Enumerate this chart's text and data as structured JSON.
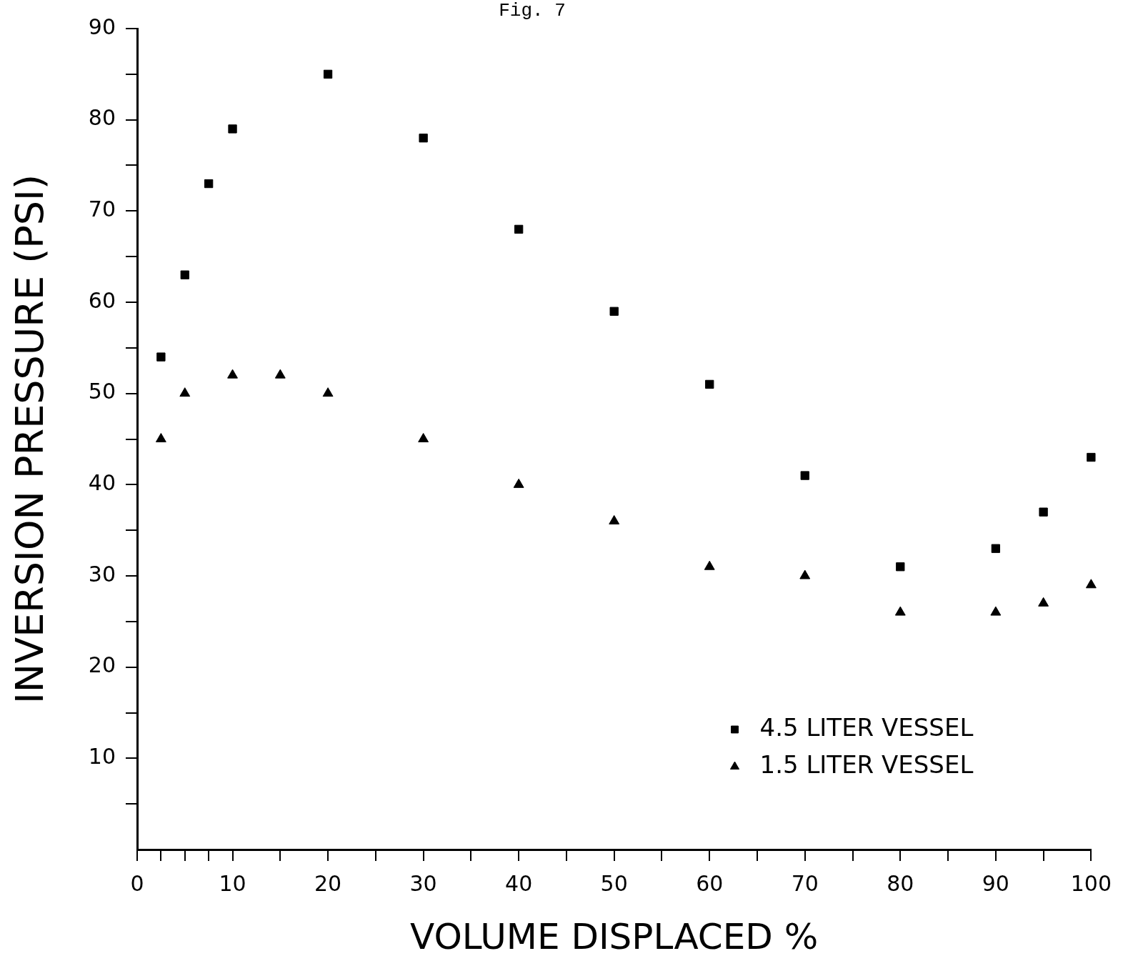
{
  "chart_data": {
    "type": "scatter",
    "title": "Fig. 7",
    "xlabel": "VOLUME DISPLACED %",
    "ylabel": "INVERSION PRESSURE (PSI)",
    "xlim": [
      0,
      100
    ],
    "ylim": [
      0,
      90
    ],
    "xticks": [
      {
        "value": 0,
        "label": "0"
      },
      {
        "value": 2.5,
        "label": null
      },
      {
        "value": 5,
        "label": null
      },
      {
        "value": 7.5,
        "label": null
      },
      10,
      {
        "value": 15,
        "label": null
      },
      20,
      {
        "value": 25,
        "label": null
      },
      30,
      {
        "value": 35,
        "label": null
      },
      40,
      {
        "value": 45,
        "label": null
      },
      50,
      {
        "value": 55,
        "label": null
      },
      60,
      {
        "value": 65,
        "label": null
      },
      70,
      {
        "value": 75,
        "label": null
      },
      80,
      {
        "value": 85,
        "label": null
      },
      90,
      {
        "value": 95,
        "label": null
      },
      100
    ],
    "yticks": [
      {
        "value": 5,
        "label": null
      },
      10,
      {
        "value": 15,
        "label": null
      },
      20,
      {
        "value": 25,
        "label": null
      },
      30,
      {
        "value": 35,
        "label": null
      },
      40,
      {
        "value": 45,
        "label": null
      },
      50,
      {
        "value": 55,
        "label": null
      },
      60,
      {
        "value": 65,
        "label": null
      },
      70,
      {
        "value": 75,
        "label": null
      },
      80,
      {
        "value": 85,
        "label": null
      },
      90
    ],
    "grid": false,
    "legend": "bottom right",
    "series": [
      {
        "name": "4.5 LITER VESSEL",
        "color": "#000000",
        "marker": "square",
        "x": [
          2.5,
          5,
          7.5,
          10,
          20,
          30,
          40,
          50,
          60,
          70,
          80,
          90,
          95,
          100
        ],
        "values": [
          54,
          63,
          73,
          79,
          85,
          78,
          68,
          59,
          51,
          41,
          31,
          33,
          37,
          43
        ]
      },
      {
        "name": "1.5 LITER VESSEL",
        "color": "#000000",
        "marker": "triangle",
        "x": [
          2.5,
          5,
          10,
          15,
          20,
          30,
          40,
          50,
          60,
          70,
          80,
          90,
          95,
          100
        ],
        "values": [
          45,
          50,
          52,
          52,
          50,
          45,
          40,
          36,
          31,
          30,
          26,
          26,
          27,
          29
        ]
      }
    ]
  }
}
